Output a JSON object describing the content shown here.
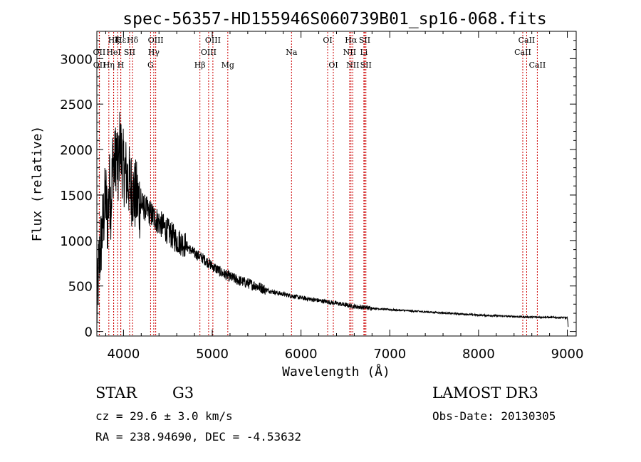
{
  "chart_data": {
    "type": "line",
    "title": "spec-56357-HD155946S060739B01_sp16-068.fits",
    "xlabel": "Wavelength (Å)",
    "ylabel": "Flux (relative)",
    "xlim": [
      3700,
      9100
    ],
    "ylim": [
      -50,
      3300
    ],
    "xticks": [
      4000,
      5000,
      6000,
      7000,
      8000,
      9000
    ],
    "yticks": [
      0,
      500,
      1000,
      1500,
      2000,
      2500,
      3000
    ],
    "series": [
      {
        "name": "spectrum",
        "color": "#000000",
        "x": [
          3700,
          3720,
          3740,
          3760,
          3780,
          3800,
          3820,
          3840,
          3860,
          3880,
          3900,
          3920,
          3940,
          3960,
          3980,
          4000,
          4020,
          4040,
          4060,
          4080,
          4100,
          4120,
          4140,
          4160,
          4180,
          4200,
          4250,
          4300,
          4350,
          4400,
          4450,
          4500,
          4550,
          4600,
          4650,
          4700,
          4750,
          4800,
          4850,
          4900,
          4950,
          5000,
          5100,
          5200,
          5300,
          5400,
          5500,
          5600,
          5700,
          5800,
          5900,
          6000,
          6200,
          6400,
          6563,
          6600,
          6800,
          7000,
          7500,
          8000,
          8500,
          8800,
          9000,
          9010
        ],
        "values": [
          200,
          700,
          900,
          1100,
          1300,
          1500,
          1200,
          1600,
          1400,
          1900,
          1800,
          2000,
          1700,
          2100,
          1900,
          1800,
          1750,
          1700,
          1650,
          1600,
          1550,
          1500,
          1480,
          1450,
          1420,
          1400,
          1350,
          1300,
          1250,
          1200,
          1150,
          1100,
          1050,
          1000,
          980,
          950,
          900,
          860,
          830,
          800,
          760,
          720,
          650,
          600,
          560,
          530,
          500,
          460,
          430,
          410,
          390,
          370,
          340,
          310,
          280,
          275,
          255,
          240,
          210,
          180,
          160,
          155,
          150,
          50
        ]
      }
    ],
    "line_color": "#cc0000",
    "lines": [
      {
        "label": "Hε",
        "x": 3970,
        "row": 0
      },
      {
        "label": "OII",
        "x": 3727,
        "row": 1
      },
      {
        "label": "OII",
        "x": 3729,
        "row": 2
      },
      {
        "label": "Hη",
        "x": 3835,
        "row": 2
      },
      {
        "label": "Hζ",
        "x": 3889,
        "row": 0
      },
      {
        "label": "K",
        "x": 3934,
        "row": 0
      },
      {
        "label": "HeI",
        "x": 3889,
        "row": 1
      },
      {
        "label": "H",
        "x": 3969,
        "row": 2
      },
      {
        "label": "SII",
        "x": 4069,
        "row": 1
      },
      {
        "label": "Hδ",
        "x": 4102,
        "row": 0
      },
      {
        "label": "OIII",
        "x": 4363,
        "row": 0
      },
      {
        "label": "Hγ",
        "x": 4341,
        "row": 1
      },
      {
        "label": "G",
        "x": 4305,
        "row": 2
      },
      {
        "label": "Hβ",
        "x": 4861,
        "row": 2
      },
      {
        "label": "OIII",
        "x": 4959,
        "row": 1
      },
      {
        "label": "OIII",
        "x": 5007,
        "row": 0
      },
      {
        "label": "Mg",
        "x": 5175,
        "row": 2
      },
      {
        "label": "Na",
        "x": 5893,
        "row": 1
      },
      {
        "label": "OI",
        "x": 6300,
        "row": 0
      },
      {
        "label": "OI",
        "x": 6364,
        "row": 2
      },
      {
        "label": "Hα",
        "x": 6563,
        "row": 0
      },
      {
        "label": "NII",
        "x": 6548,
        "row": 1
      },
      {
        "label": "NII",
        "x": 6583,
        "row": 2
      },
      {
        "label": "SII",
        "x": 6717,
        "row": 0
      },
      {
        "label": "Li",
        "x": 6708,
        "row": 1
      },
      {
        "label": "SII",
        "x": 6731,
        "row": 2
      },
      {
        "label": "CaII",
        "x": 8542,
        "row": 0
      },
      {
        "label": "CaII",
        "x": 8498,
        "row": 1
      },
      {
        "label": "CaII",
        "x": 8662,
        "row": 2
      }
    ]
  },
  "info": {
    "class": "STAR",
    "subclass": "G3",
    "survey": "LAMOST DR3",
    "cz": "cz = 29.6 ± 3.0 km/s",
    "obs_date": "Obs-Date: 20130305",
    "radec": "RA = 238.94690, DEC =  -4.53632"
  }
}
